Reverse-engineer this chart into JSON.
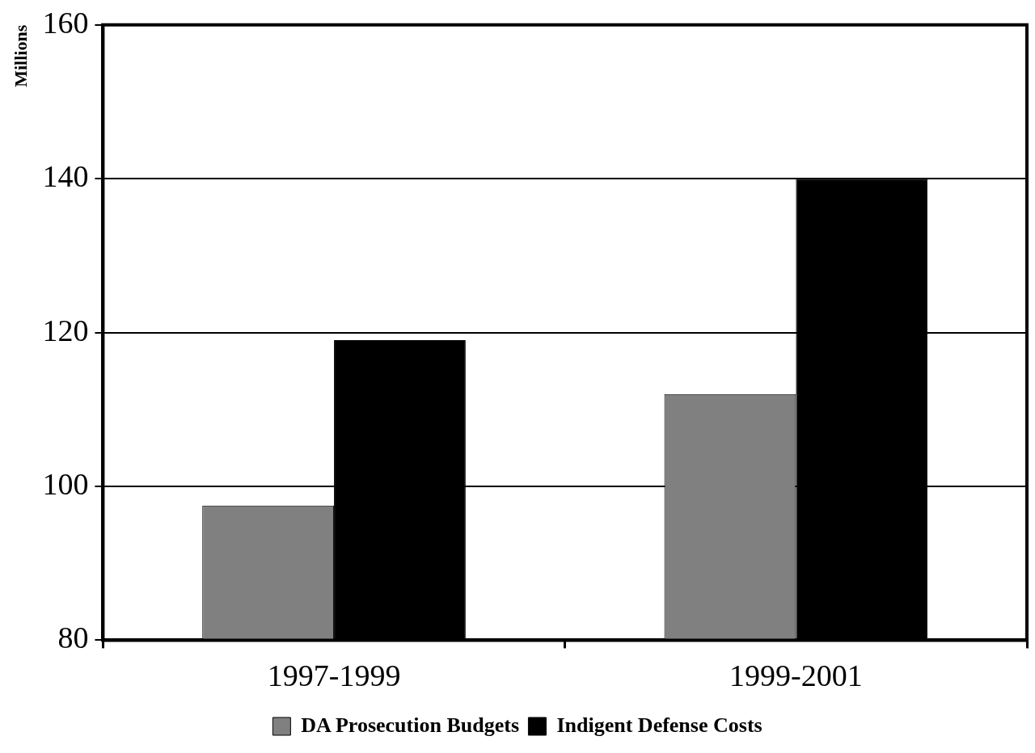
{
  "chart_data": {
    "type": "bar",
    "ylabel": "Millions",
    "categories": [
      "1997-1999",
      "1999-2001"
    ],
    "series": [
      {
        "name": "DA Prosecution Budgets",
        "color": "#808080",
        "values": [
          97.5,
          112
        ]
      },
      {
        "name": "Indigent Defense Costs",
        "color": "#000000",
        "values": [
          119,
          140
        ]
      }
    ],
    "ylim": [
      80,
      160
    ],
    "yticks": [
      80,
      100,
      120,
      140,
      160
    ],
    "grid": "y",
    "legend": "bottom"
  }
}
